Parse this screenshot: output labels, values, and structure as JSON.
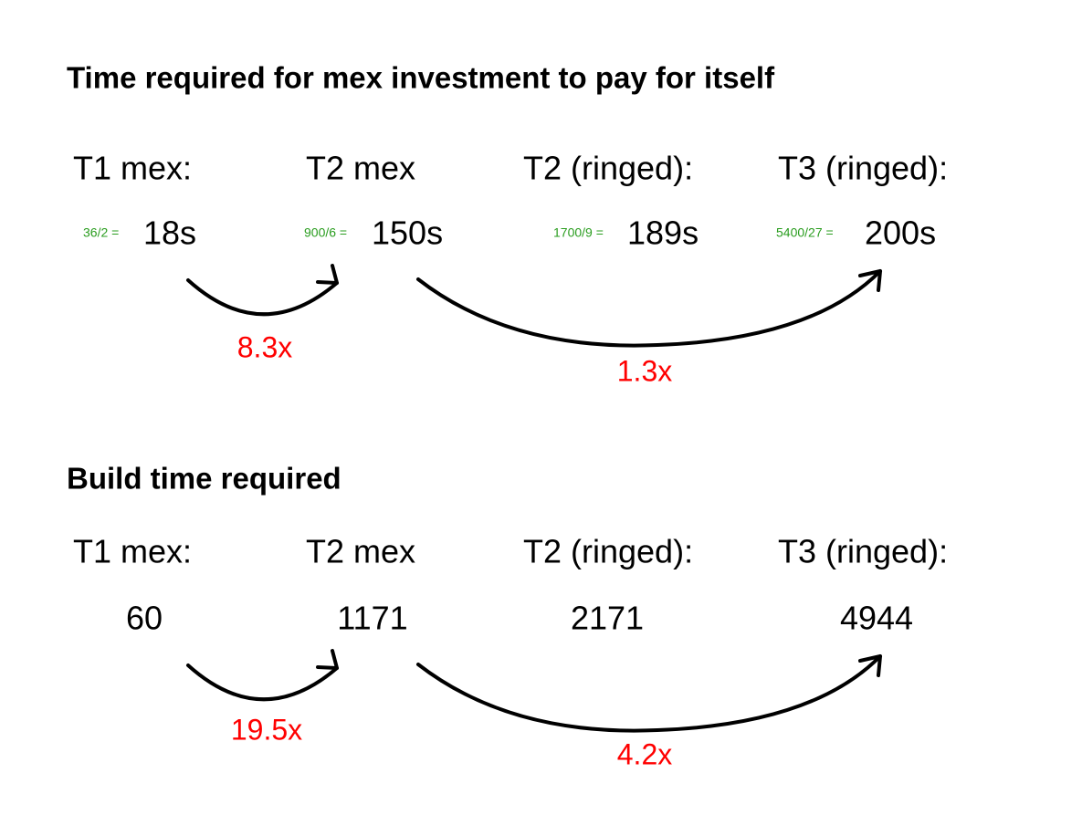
{
  "sections": [
    {
      "title": "Time required for mex investment to pay for itself",
      "headers": [
        "T1 mex:",
        "T2 mex",
        "T2 (ringed):",
        "T3 (ringed):"
      ],
      "formulas": [
        "36/2 =",
        "900/6 =",
        "1700/9 =",
        "5400/27 ="
      ],
      "values": [
        "18s",
        "150s",
        "189s",
        "200s"
      ],
      "ratios": [
        "8.3x",
        "1.3x"
      ]
    },
    {
      "title": "Build time required",
      "headers": [
        "T1 mex:",
        "T2 mex",
        "T2 (ringed):",
        "T3 (ringed):"
      ],
      "values": [
        "60",
        "1171",
        "2171",
        "4944"
      ],
      "ratios": [
        "19.5x",
        "4.2x"
      ]
    }
  ]
}
